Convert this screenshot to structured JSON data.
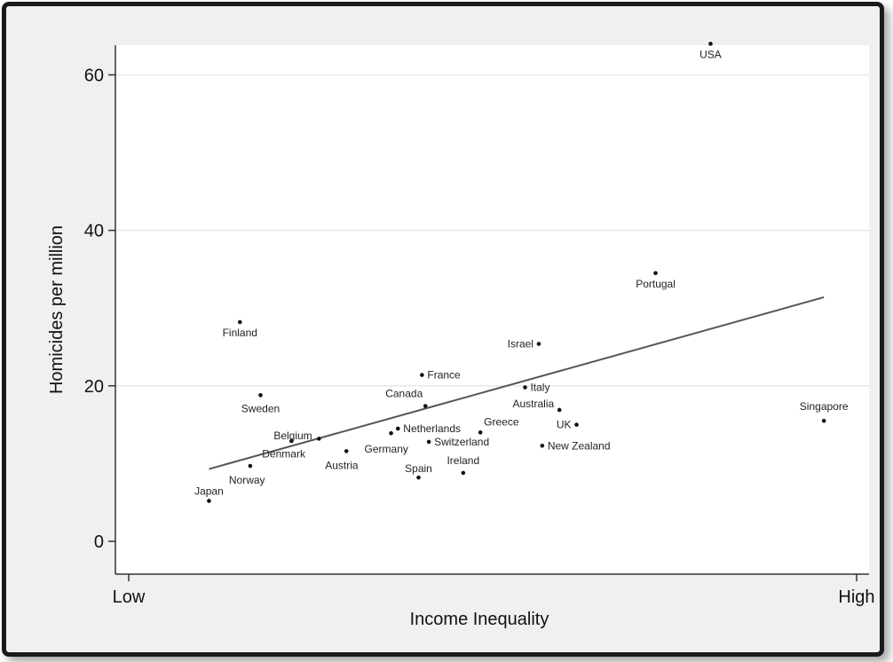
{
  "chart_data": {
    "type": "scatter",
    "title": "",
    "xlabel": "Income Inequality",
    "ylabel": "Homicides per million",
    "ylim": [
      0,
      65
    ],
    "yticks": [
      0,
      20,
      40,
      60
    ],
    "xtick_labels": [
      "Low",
      "High"
    ],
    "grid": true,
    "points": [
      {
        "label": "USA",
        "x": 0.79,
        "y": 64
      },
      {
        "label": "Portugal",
        "x": 0.71,
        "y": 34.5
      },
      {
        "label": "Finland",
        "x": 0.105,
        "y": 28.2
      },
      {
        "label": "Israel",
        "x": 0.54,
        "y": 25.4
      },
      {
        "label": "France",
        "x": 0.37,
        "y": 21.4
      },
      {
        "label": "Italy",
        "x": 0.52,
        "y": 19.8
      },
      {
        "label": "Sweden",
        "x": 0.135,
        "y": 18.8
      },
      {
        "label": "Canada",
        "x": 0.375,
        "y": 17.4
      },
      {
        "label": "Australia",
        "x": 0.57,
        "y": 16.9
      },
      {
        "label": "UK",
        "x": 0.595,
        "y": 15
      },
      {
        "label": "Singapore",
        "x": 0.955,
        "y": 15.5
      },
      {
        "label": "Netherlands",
        "x": 0.335,
        "y": 14.5
      },
      {
        "label": "Greece",
        "x": 0.455,
        "y": 14
      },
      {
        "label": "Belgium",
        "x": 0.18,
        "y": 12.9
      },
      {
        "label": "Switzerland",
        "x": 0.38,
        "y": 12.8
      },
      {
        "label": "Germany",
        "x": 0.325,
        "y": 13.9
      },
      {
        "label": "Denmark",
        "x": 0.22,
        "y": 13.2
      },
      {
        "label": "New Zealand",
        "x": 0.545,
        "y": 12.3
      },
      {
        "label": "Austria",
        "x": 0.26,
        "y": 11.6
      },
      {
        "label": "Norway",
        "x": 0.12,
        "y": 9.7
      },
      {
        "label": "Ireland",
        "x": 0.43,
        "y": 8.8
      },
      {
        "label": "Spain",
        "x": 0.365,
        "y": 8.2
      },
      {
        "label": "Japan",
        "x": 0.06,
        "y": 5.2
      }
    ],
    "fit_line": {
      "x": [
        0.06,
        0.955
      ],
      "y": [
        9.3,
        31.4
      ]
    }
  }
}
